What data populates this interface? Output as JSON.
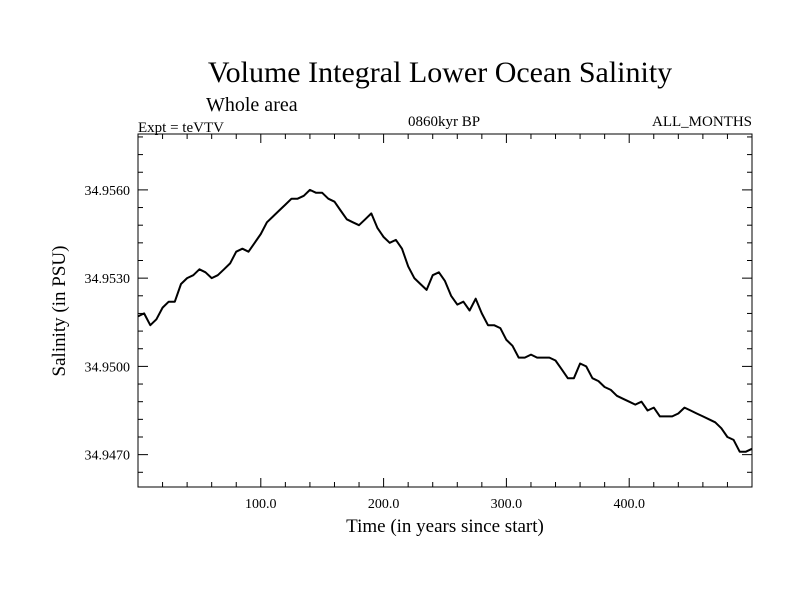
{
  "chart_data": {
    "type": "line",
    "title": "Volume Integral Lower Ocean Salinity",
    "subtitle": "Whole area",
    "annotations": {
      "left": "Expt = teVTV",
      "center": "0860kyr BP",
      "right": "ALL_MONTHS"
    },
    "xlabel": "Time (in years since start)",
    "ylabel": "Salinity (in PSU)",
    "xlim": [
      0,
      500
    ],
    "ylim": [
      34.9459,
      34.9579
    ],
    "xticks": [
      100,
      200,
      300,
      400
    ],
    "xtick_labels": [
      "100.0",
      "200.0",
      "300.0",
      "400.0"
    ],
    "yticks": [
      34.947,
      34.95,
      34.953,
      34.956
    ],
    "ytick_labels": [
      "34.9470",
      "34.9500",
      "34.9530",
      "34.9560"
    ],
    "grid": false,
    "series": [
      {
        "name": "salinity",
        "x": [
          0,
          5,
          10,
          15,
          20,
          25,
          30,
          35,
          40,
          45,
          50,
          55,
          60,
          65,
          70,
          75,
          80,
          85,
          90,
          95,
          100,
          105,
          110,
          115,
          120,
          125,
          130,
          135,
          140,
          145,
          150,
          155,
          160,
          165,
          170,
          175,
          180,
          185,
          190,
          195,
          200,
          205,
          210,
          215,
          220,
          225,
          230,
          235,
          240,
          245,
          250,
          255,
          260,
          265,
          270,
          275,
          280,
          285,
          290,
          295,
          300,
          305,
          310,
          315,
          320,
          325,
          330,
          335,
          340,
          345,
          350,
          355,
          360,
          365,
          370,
          375,
          380,
          385,
          390,
          395,
          400,
          405,
          410,
          415,
          420,
          425,
          430,
          435,
          440,
          445,
          450,
          455,
          460,
          465,
          470,
          475,
          480,
          485,
          490,
          495,
          500
        ],
        "values": [
          34.9517,
          34.9518,
          34.9514,
          34.9516,
          34.952,
          34.9522,
          34.9522,
          34.9528,
          34.953,
          34.9531,
          34.9533,
          34.9532,
          34.953,
          34.9531,
          34.9533,
          34.9535,
          34.9539,
          34.954,
          34.9539,
          34.9542,
          34.9545,
          34.9549,
          34.9551,
          34.9553,
          34.9555,
          34.9557,
          34.9557,
          34.9558,
          34.956,
          34.9559,
          34.9559,
          34.9557,
          34.9556,
          34.9553,
          34.955,
          34.9549,
          34.9548,
          34.955,
          34.9552,
          34.9547,
          34.9544,
          34.9542,
          34.9543,
          34.954,
          34.9534,
          34.953,
          34.9528,
          34.9526,
          34.9531,
          34.9532,
          34.9529,
          34.9524,
          34.9521,
          34.9522,
          34.9519,
          34.9523,
          34.9518,
          34.9514,
          34.9514,
          34.9513,
          34.9509,
          34.9507,
          34.9503,
          34.9503,
          34.9504,
          34.9503,
          34.9503,
          34.9503,
          34.9502,
          34.9499,
          34.9496,
          34.9496,
          34.9501,
          34.95,
          34.9496,
          34.9495,
          34.9493,
          34.9492,
          34.949,
          34.9489,
          34.9488,
          34.9487,
          34.9488,
          34.9485,
          34.9486,
          34.9483,
          34.9483,
          34.9483,
          34.9484,
          34.9486,
          34.9485,
          34.9484,
          34.9483,
          34.9482,
          34.9481,
          34.9479,
          34.9476,
          34.9475,
          34.9471,
          34.9471,
          34.9472
        ]
      }
    ]
  }
}
